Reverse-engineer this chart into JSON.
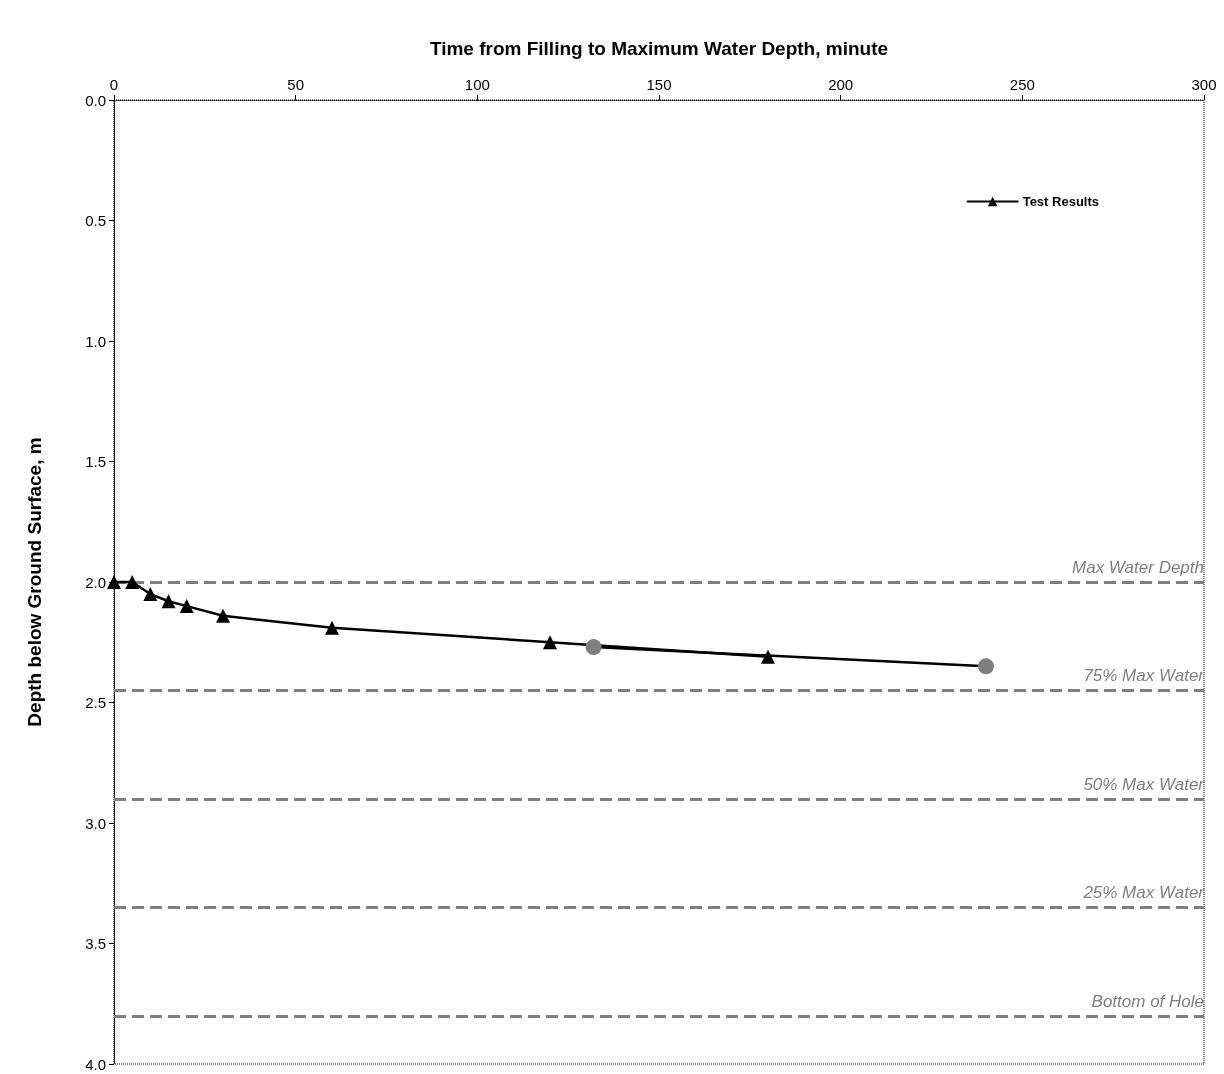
{
  "chart_data": {
    "type": "line",
    "xlabel": "Time from Filling to Maximum Water Depth, minute",
    "ylabel": "Depth below Ground Surface, m",
    "xlim": [
      0,
      300
    ],
    "xticks": [
      0,
      50,
      100,
      150,
      200,
      250,
      300
    ],
    "ylim": [
      4.0,
      0.0
    ],
    "yticks": [
      {
        "value": 0,
        "label": "0.0"
      },
      0.5,
      {
        "value": 1,
        "label": "1.0"
      },
      1.5,
      {
        "value": 2,
        "label": "2.0"
      },
      2.5,
      {
        "value": 3,
        "label": "3.0"
      },
      3.5,
      {
        "value": 4,
        "label": "4.0"
      }
    ],
    "grid": false,
    "legend": "top right",
    "series": [
      {
        "name": "Test Results",
        "color": "#000000",
        "marker": "triangle",
        "line_style": "solid",
        "x": [
          0,
          5,
          10,
          15,
          20,
          30,
          60,
          120,
          180
        ],
        "values": [
          2.0,
          2.0,
          2.05,
          2.08,
          2.1,
          2.14,
          2.19,
          2.25,
          2.31
        ]
      },
      {
        "color": "#7f7f7f",
        "marker": "circle",
        "line_style": "solid",
        "x": [
          132,
          240
        ],
        "values": [
          2.27,
          2.35
        ]
      }
    ],
    "ref_lines": [
      {
        "axis": "y",
        "value": 2.0,
        "label": "Max Water Depth",
        "color": "#7f7f7f",
        "line_style": "dashed"
      },
      {
        "axis": "y",
        "value": 2.45,
        "label": "75% Max Water",
        "color": "#7f7f7f",
        "line_style": "dashed"
      },
      {
        "axis": "y",
        "value": 2.9,
        "label": "50% Max Water",
        "color": "#7f7f7f",
        "line_style": "dashed"
      },
      {
        "axis": "y",
        "value": 3.35,
        "label": "25% Max Water",
        "color": "#7f7f7f",
        "line_style": "dashed"
      },
      {
        "axis": "y",
        "value": 3.8,
        "label": "Bottom of Hole",
        "color": "#7f7f7f",
        "line_style": "dashed"
      }
    ]
  }
}
